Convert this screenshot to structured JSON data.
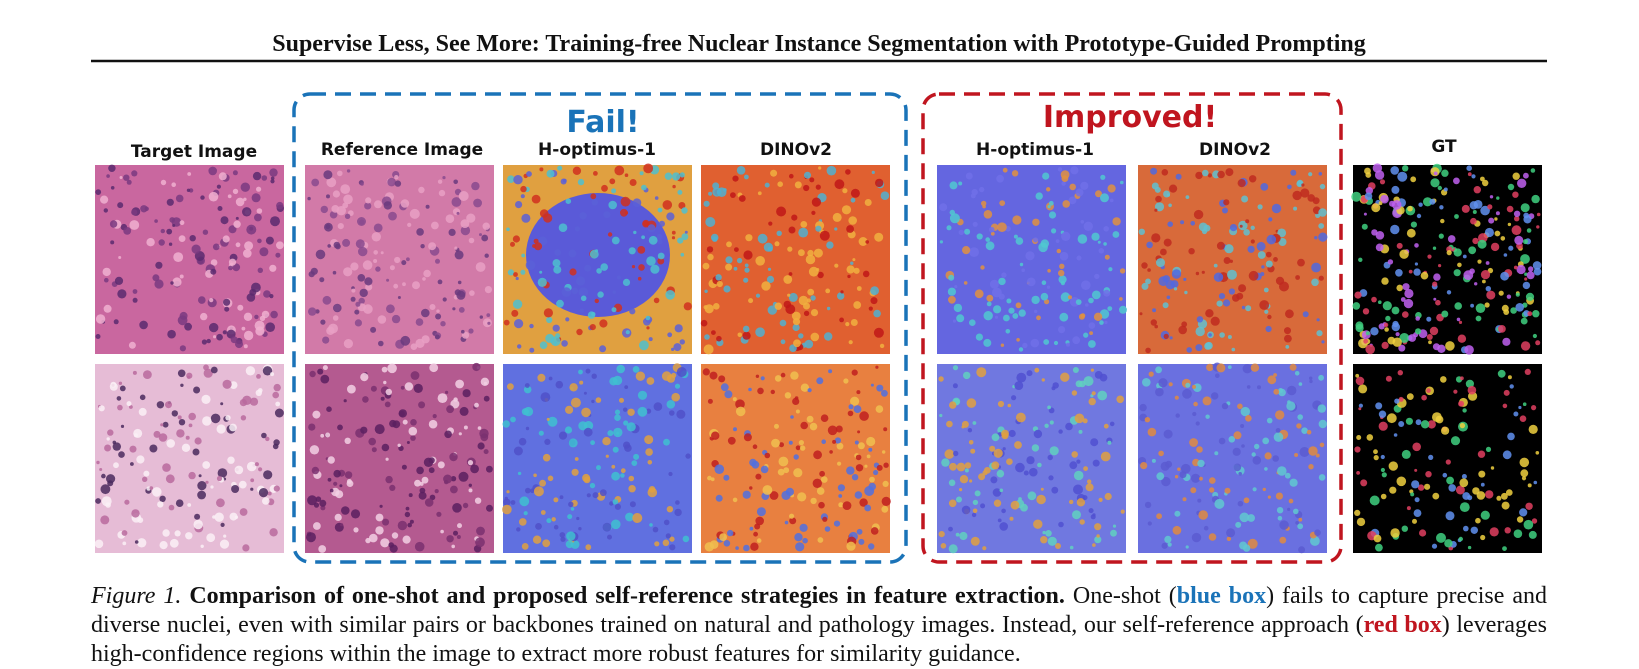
{
  "header": {
    "title": "Supervise Less, See More: Training-free Nuclear Instance Segmentation with Prototype-Guided Prompting"
  },
  "figure": {
    "columns": {
      "target": "Target Image",
      "reference": "Reference Image",
      "fail_hoptimus": "H-optimus-1",
      "fail_dinov2": "DINOv2",
      "improved_hoptimus": "H-optimus-1",
      "improved_dinov2": "DINOv2",
      "gt": "GT"
    },
    "fail_label": "Fail!",
    "improved_label": "Improved!"
  },
  "caption": {
    "label": "Figure 1.",
    "heading": "Comparison of one-shot and proposed self-reference strategies in feature extraction.",
    "parts": [
      "One-shot (",
      "blue box",
      ") fails to capture precise and diverse nuclei, even with similar pairs or backbones trained on natural and pathology images. Instead, our self-reference approach (",
      "red box",
      ") leverages high-confidence regions within the image to extract more robust features for similarity guidance."
    ]
  }
}
